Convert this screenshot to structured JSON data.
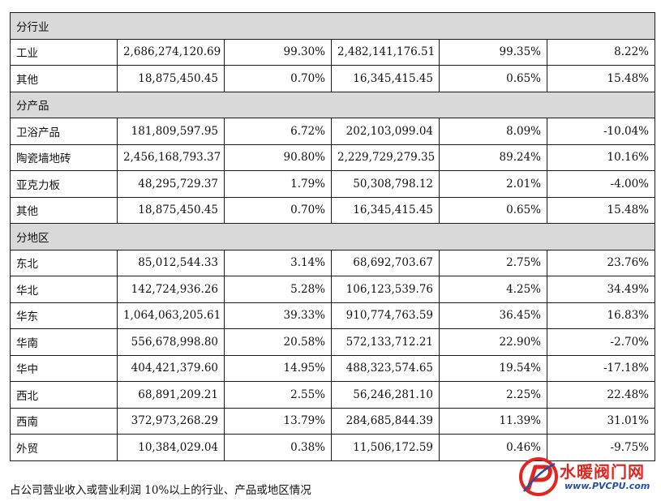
{
  "table": {
    "sections": [
      {
        "title": "分行业",
        "rows": [
          [
            "工业",
            "2,686,274,120.69",
            "99.30%",
            "2,482,141,176.51",
            "99.35%",
            "8.22%"
          ],
          [
            "其他",
            "18,875,450.45",
            "0.70%",
            "16,345,415.45",
            "0.65%",
            "15.48%"
          ]
        ]
      },
      {
        "title": "分产品",
        "rows": [
          [
            "卫浴产品",
            "181,809,597.95",
            "6.72%",
            "202,103,099.04",
            "8.09%",
            "-10.04%"
          ],
          [
            "陶瓷墙地砖",
            "2,456,168,793.37",
            "90.80%",
            "2,229,729,279.35",
            "89.24%",
            "10.16%"
          ],
          [
            "亚克力板",
            "48,295,729.37",
            "1.79%",
            "50,308,798.12",
            "2.01%",
            "-4.00%"
          ],
          [
            "其他",
            "18,875,450.45",
            "0.70%",
            "16,345,415.45",
            "0.65%",
            "15.48%"
          ]
        ]
      },
      {
        "title": "分地区",
        "rows": [
          [
            "东北",
            "85,012,544.33",
            "3.14%",
            "68,692,703.67",
            "2.75%",
            "23.76%"
          ],
          [
            "华北",
            "142,724,936.26",
            "5.28%",
            "106,123,539.76",
            "4.25%",
            "34.49%"
          ],
          [
            "华东",
            "1,064,063,205.61",
            "39.33%",
            "910,774,763.59",
            "36.45%",
            "16.83%"
          ],
          [
            "华南",
            "556,678,998.80",
            "20.58%",
            "572,133,712.21",
            "22.90%",
            "-2.70%"
          ],
          [
            "华中",
            "404,421,379.60",
            "14.95%",
            "488,323,574.65",
            "19.54%",
            "-17.18%"
          ],
          [
            "西北",
            "68,891,209.21",
            "2.55%",
            "56,246,281.10",
            "2.25%",
            "22.48%"
          ],
          [
            "西南",
            "372,973,268.29",
            "13.79%",
            "284,685,844.39",
            "11.39%",
            "31.01%"
          ],
          [
            "外贸",
            "10,384,029.04",
            "0.38%",
            "11,506,172.59",
            "0.46%",
            "-9.75%"
          ]
        ]
      }
    ]
  },
  "caption": "占公司营业收入或营业利润 10%以上的行业、产品或地区情况",
  "watermark": {
    "text": "水暖阀门网",
    "url": "www.PVCPU.com",
    "text_color": "#e0261f",
    "url_color": "#1f4fa8"
  }
}
